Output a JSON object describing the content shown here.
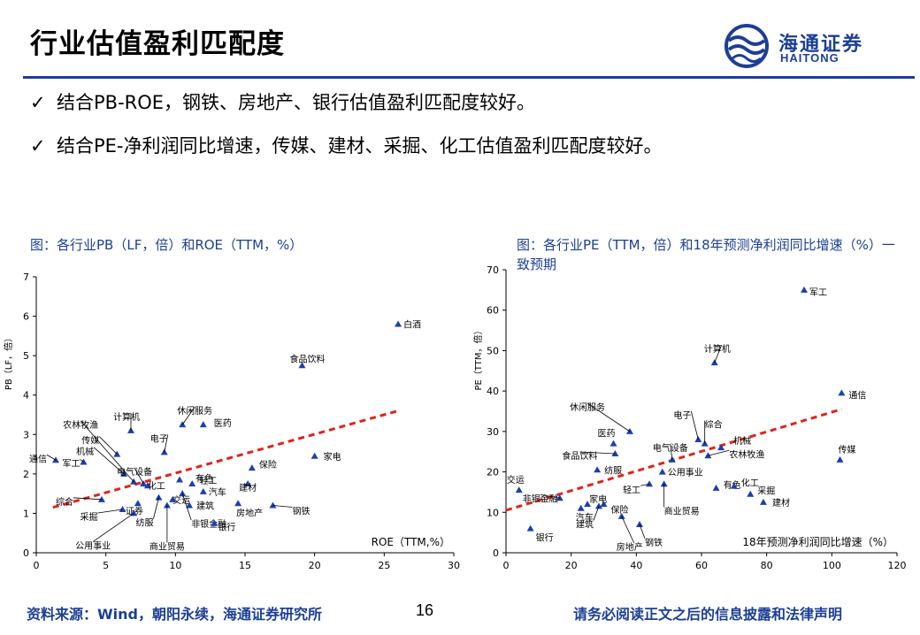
{
  "header": {
    "title": "行业估值盈利匹配度",
    "logo_cn": "海通证券",
    "logo_en": "HAITONG"
  },
  "bullets": [
    "结合PB-ROE，钢铁、房地产、银行估值盈利匹配度较好。",
    "结合PE-净利润同比增速，传媒、建材、采掘、化工估值盈利匹配度较好。"
  ],
  "colors": {
    "brand": "#1c3f94",
    "marker": "#1c3fae",
    "trend": "#e2231a"
  },
  "chart_data": [
    {
      "type": "scatter",
      "caption": "图：各行业PB（LF，倍）和ROE（TTM，%）",
      "xlabel": "ROE（TTM,%）",
      "ylabel": "PB（LF，倍）",
      "xlim": [
        0,
        30
      ],
      "ylim": [
        0,
        7
      ],
      "xticks": [
        0,
        5,
        10,
        15,
        20,
        25,
        30
      ],
      "yticks": [
        0,
        1,
        2,
        3,
        4,
        5,
        6,
        7
      ],
      "trendline": {
        "from": [
          1.2,
          1.15
        ],
        "to": [
          26,
          3.6
        ]
      },
      "points": [
        {
          "name": "白酒",
          "x": 26.0,
          "y": 5.8
        },
        {
          "name": "食品饮料",
          "x": 19.1,
          "y": 4.75
        },
        {
          "name": "家电",
          "x": 20.0,
          "y": 2.45
        },
        {
          "name": "通信",
          "x": 1.4,
          "y": 2.35
        },
        {
          "name": "军工",
          "x": 3.4,
          "y": 2.3
        },
        {
          "name": "传媒",
          "x": 5.8,
          "y": 2.5
        },
        {
          "name": "机械",
          "x": 6.3,
          "y": 2.0
        },
        {
          "name": "农林牧渔",
          "x": 7.0,
          "y": 1.8
        },
        {
          "name": "计算机",
          "x": 6.8,
          "y": 3.1
        },
        {
          "name": "休闲服务",
          "x": 10.5,
          "y": 3.25
        },
        {
          "name": "医药",
          "x": 12.0,
          "y": 3.25
        },
        {
          "name": "电子",
          "x": 9.2,
          "y": 2.55
        },
        {
          "name": "电气设备",
          "x": 7.7,
          "y": 1.75
        },
        {
          "name": "有色",
          "x": 10.3,
          "y": 1.85
        },
        {
          "name": "化工",
          "x": 8.0,
          "y": 1.7
        },
        {
          "name": "轻工",
          "x": 11.2,
          "y": 1.75
        },
        {
          "name": "保险",
          "x": 15.5,
          "y": 2.15
        },
        {
          "name": "建材",
          "x": 15.2,
          "y": 1.75
        },
        {
          "name": "汽车",
          "x": 12.0,
          "y": 1.55
        },
        {
          "name": "综合",
          "x": 4.7,
          "y": 1.35
        },
        {
          "name": "采掘",
          "x": 6.2,
          "y": 1.1
        },
        {
          "name": "证券",
          "x": 7.3,
          "y": 1.25
        },
        {
          "name": "纺服",
          "x": 8.8,
          "y": 1.4
        },
        {
          "name": "公用事业",
          "x": 7.0,
          "y": 1.0
        },
        {
          "name": "商业贸易",
          "x": 9.4,
          "y": 1.2
        },
        {
          "name": "交运",
          "x": 9.8,
          "y": 1.35
        },
        {
          "name": "建筑",
          "x": 11.0,
          "y": 1.2
        },
        {
          "name": "非银金融",
          "x": 10.5,
          "y": 1.5
        },
        {
          "name": "房地产",
          "x": 14.5,
          "y": 1.25
        },
        {
          "name": "银行",
          "x": 12.8,
          "y": 0.75
        },
        {
          "name": "钢铁",
          "x": 17.0,
          "y": 1.2
        }
      ]
    },
    {
      "type": "scatter",
      "caption": "图：各行业PE（TTM，倍）和18年预测净利润同比增速（%）一致预期",
      "xlabel": "18年预测净利润同比增速（%）",
      "ylabel": "PE（TTM，倍）",
      "xlim": [
        0,
        120
      ],
      "ylim": [
        0,
        70
      ],
      "xticks": [
        0,
        20,
        40,
        60,
        80,
        100,
        120
      ],
      "yticks": [
        0,
        10,
        20,
        30,
        40,
        50,
        60,
        70
      ],
      "trendline": {
        "from": [
          0,
          10.5
        ],
        "to": [
          103,
          35.5
        ]
      },
      "points": [
        {
          "name": "军工",
          "x": 91.5,
          "y": 65.0
        },
        {
          "name": "计算机",
          "x": 64.0,
          "y": 47.0
        },
        {
          "name": "通信",
          "x": 103.0,
          "y": 39.5
        },
        {
          "name": "传媒",
          "x": 102.5,
          "y": 23.0
        },
        {
          "name": "电子",
          "x": 59.0,
          "y": 28.0
        },
        {
          "name": "综合",
          "x": 61.0,
          "y": 27.0
        },
        {
          "name": "机械",
          "x": 66.0,
          "y": 26.0
        },
        {
          "name": "农林牧渔",
          "x": 62.0,
          "y": 24.0
        },
        {
          "name": "有色",
          "x": 64.5,
          "y": 16.0
        },
        {
          "name": "化工",
          "x": 70.0,
          "y": 16.5
        },
        {
          "name": "采掘",
          "x": 75.0,
          "y": 14.5
        },
        {
          "name": "建材",
          "x": 79.0,
          "y": 12.5
        },
        {
          "name": "休闲服务",
          "x": 38.0,
          "y": 30.0
        },
        {
          "name": "医药",
          "x": 33.0,
          "y": 27.0
        },
        {
          "name": "食品饮料",
          "x": 33.5,
          "y": 24.5
        },
        {
          "name": "电气设备",
          "x": 51.0,
          "y": 23.0
        },
        {
          "name": "纺服",
          "x": 28.0,
          "y": 20.5
        },
        {
          "name": "公用事业",
          "x": 48.0,
          "y": 20.0
        },
        {
          "name": "轻工",
          "x": 44.0,
          "y": 17.0
        },
        {
          "name": "交运",
          "x": 4.0,
          "y": 15.5
        },
        {
          "name": "非银金融",
          "x": 16.5,
          "y": 13.5
        },
        {
          "name": "汽车",
          "x": 23.0,
          "y": 11.0
        },
        {
          "name": "家电",
          "x": 25.0,
          "y": 12.0
        },
        {
          "name": "商业贸易",
          "x": 48.5,
          "y": 17.0
        },
        {
          "name": "建筑",
          "x": 28.5,
          "y": 11.5
        },
        {
          "name": "保险",
          "x": 30.0,
          "y": 12.0
        },
        {
          "name": "钢铁",
          "x": 41.0,
          "y": 7.0
        },
        {
          "name": "房地产",
          "x": 35.5,
          "y": 9.0
        },
        {
          "name": "银行",
          "x": 7.5,
          "y": 6.0
        }
      ]
    }
  ],
  "footer": {
    "source": "资料来源：Wind，朝阳永续，海通证券研究所",
    "page": "16",
    "disclaimer": "请务必阅读正文之后的信息披露和法律声明"
  }
}
